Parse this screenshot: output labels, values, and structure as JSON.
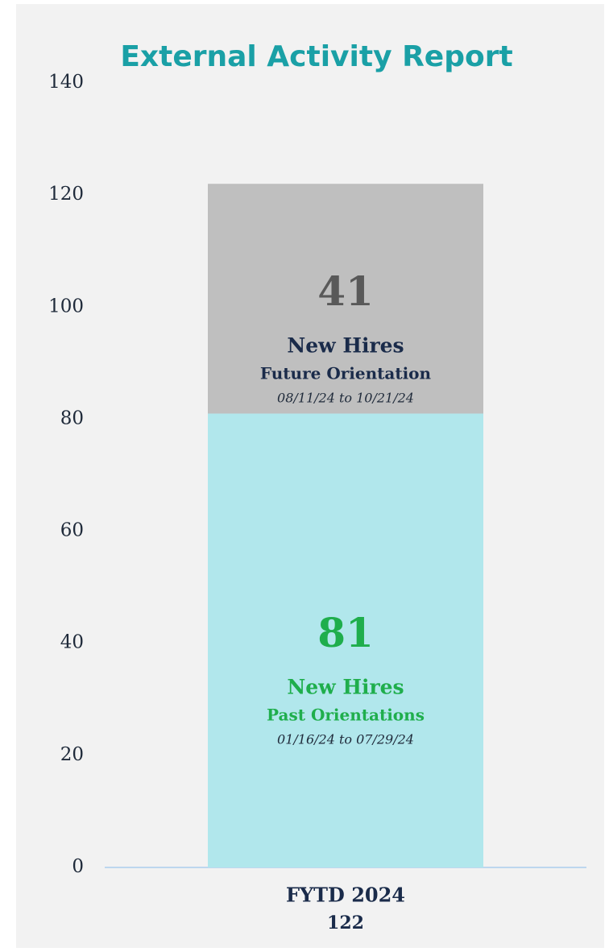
{
  "chart_data": {
    "type": "stacked_bar",
    "title": "External Activity Report",
    "categories": [
      "FYTD 2024"
    ],
    "totals": [
      122
    ],
    "series": [
      {
        "name": "Past Orientations",
        "label": "New Hires",
        "date_range": "01/16/24 to 07/29/24",
        "color": "#b1e7ec",
        "text_color": "#1fae4c",
        "values": [
          81
        ]
      },
      {
        "name": "Future Orientation",
        "label": "New Hires",
        "date_range": "08/11/24 to 10/21/24",
        "color": "#bfbfbf",
        "text_color": "#595959",
        "values": [
          41
        ]
      }
    ],
    "ylim": [
      0,
      140
    ],
    "yticks": [
      0,
      20,
      40,
      60,
      80,
      100,
      120,
      140
    ]
  }
}
